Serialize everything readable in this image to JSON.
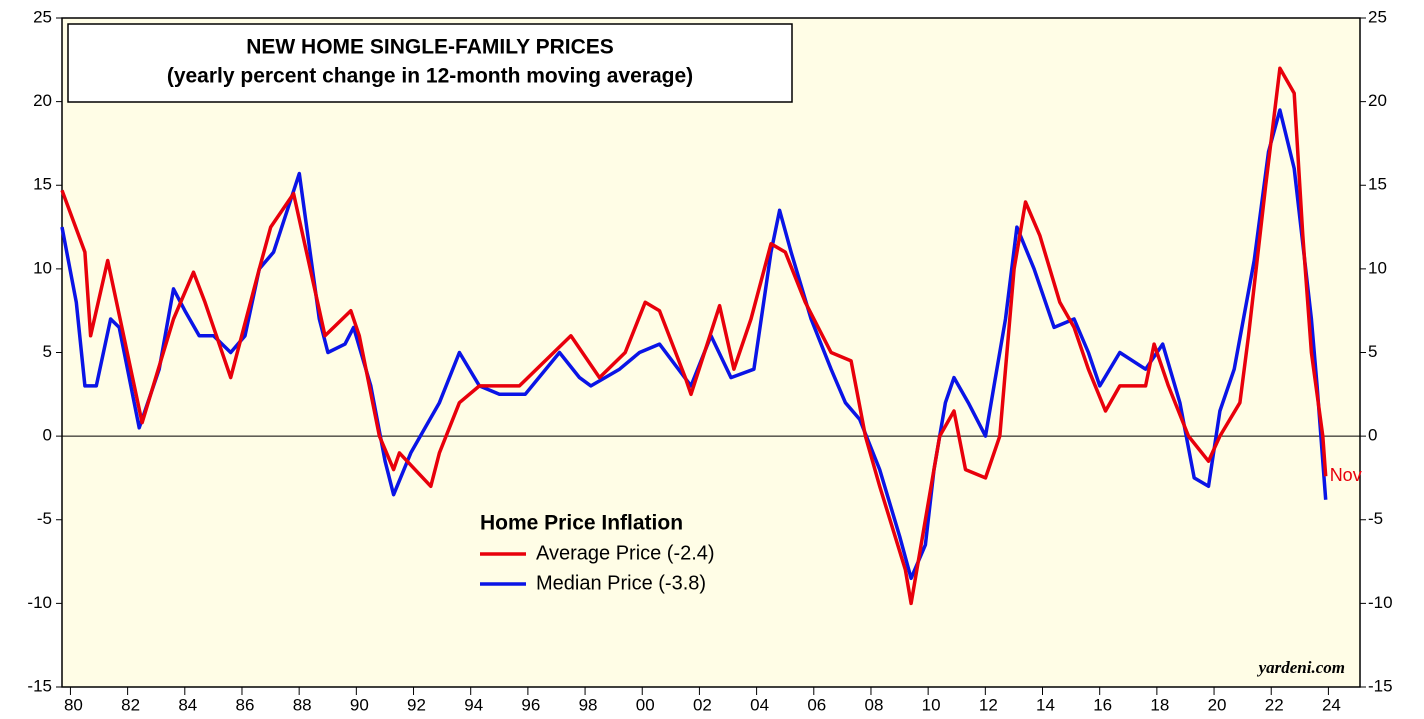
{
  "chart_data": {
    "type": "line",
    "title": [
      "NEW HOME SINGLE-FAMILY PRICES",
      "(yearly percent change in 12-month moving average)"
    ],
    "legend_title": "Home Price Inflation",
    "annotation": "Nov",
    "source": "yardeni.com",
    "xlim": [
      1979.6,
      2025
    ],
    "ylim": [
      -15,
      25
    ],
    "yticks": [
      -15,
      -10,
      -5,
      0,
      5,
      10,
      15,
      20,
      25
    ],
    "xticks": [
      {
        "value": 1980,
        "label": "80"
      },
      {
        "value": 1982,
        "label": "82"
      },
      {
        "value": 1984,
        "label": "84"
      },
      {
        "value": 1986,
        "label": "86"
      },
      {
        "value": 1988,
        "label": "88"
      },
      {
        "value": 1990,
        "label": "90"
      },
      {
        "value": 1992,
        "label": "92"
      },
      {
        "value": 1994,
        "label": "94"
      },
      {
        "value": 1996,
        "label": "96"
      },
      {
        "value": 1998,
        "label": "98"
      },
      {
        "value": 2000,
        "label": "00"
      },
      {
        "value": 2002,
        "label": "02"
      },
      {
        "value": 2004,
        "label": "04"
      },
      {
        "value": 2006,
        "label": "06"
      },
      {
        "value": 2008,
        "label": "08"
      },
      {
        "value": 2010,
        "label": "10"
      },
      {
        "value": 2012,
        "label": "12"
      },
      {
        "value": 2014,
        "label": "14"
      },
      {
        "value": 2016,
        "label": "16"
      },
      {
        "value": 2018,
        "label": "18"
      },
      {
        "value": 2020,
        "label": "20"
      },
      {
        "value": 2022,
        "label": "22"
      },
      {
        "value": 2024,
        "label": "24"
      }
    ],
    "series": [
      {
        "name": "Average Price (-2.4)",
        "color": "#e8000b",
        "x": [
          1979.6,
          1980.4,
          1980.6,
          1981.2,
          1982.4,
          1983.5,
          1984.2,
          1984.6,
          1985.5,
          1986.5,
          1986.9,
          1987.7,
          1988.8,
          1989.7,
          1990.0,
          1990.7,
          1991.2,
          1991.4,
          1992.5,
          1992.8,
          1993.5,
          1994.2,
          1995.6,
          1997.4,
          1998.4,
          1999.3,
          2000.0,
          2000.5,
          2001.4,
          2001.6,
          2002.6,
          2003.1,
          2003.7,
          2004.4,
          2004.9,
          2005.6,
          2006.5,
          2007.2,
          2007.7,
          2008.2,
          2009.1,
          2009.3,
          2010.0,
          2010.3,
          2010.8,
          2011.2,
          2011.9,
          2012.4,
          2012.6,
          2012.9,
          2013.3,
          2013.8,
          2014.5,
          2015.0,
          2015.5,
          2016.1,
          2016.6,
          2017.5,
          2017.8,
          2018.3,
          2019.0,
          2019.7,
          2020.1,
          2020.8,
          2021.1,
          2021.7,
          2022.2,
          2022.7,
          2023.0,
          2023.3,
          2023.7,
          2023.8
        ],
        "values": [
          14.7,
          11,
          6,
          10.5,
          0.8,
          7,
          9.8,
          8,
          3.5,
          10,
          12.5,
          14.5,
          6,
          7.5,
          6,
          0,
          -2,
          -1,
          -3,
          -1,
          2,
          3,
          3,
          6,
          3.5,
          5,
          8,
          7.5,
          3.5,
          2.5,
          7.8,
          4,
          7,
          11.5,
          11,
          8,
          5,
          4.5,
          0,
          -3,
          -8,
          -10,
          -3,
          0,
          1.5,
          -2,
          -2.5,
          0,
          4,
          10,
          14,
          12,
          8,
          6.5,
          4,
          1.5,
          3,
          3,
          5.5,
          3,
          0,
          -1.5,
          0,
          2,
          6,
          15,
          22,
          20.5,
          12,
          5,
          0,
          -2.4
        ]
      },
      {
        "name": "Median Price (-3.8)",
        "color": "#0a14e6",
        "x": [
          1979.6,
          1980.1,
          1980.4,
          1980.8,
          1981.3,
          1981.6,
          1982.3,
          1983.0,
          1983.5,
          1983.9,
          1984.4,
          1984.9,
          1985.5,
          1986.0,
          1986.5,
          1987.0,
          1987.9,
          1988.6,
          1988.9,
          1989.5,
          1989.8,
          1990.4,
          1990.9,
          1991.2,
          1991.8,
          1992.3,
          1992.8,
          1993.5,
          1994.2,
          1994.9,
          1995.8,
          1997.0,
          1997.7,
          1998.1,
          1999.1,
          1999.8,
          2000.5,
          2001.6,
          2002.3,
          2003.0,
          2003.8,
          2004.4,
          2004.7,
          2005.1,
          2005.8,
          2006.5,
          2007.0,
          2007.5,
          2008.2,
          2008.9,
          2009.3,
          2009.8,
          2010.1,
          2010.5,
          2010.8,
          2011.3,
          2011.9,
          2012.2,
          2012.6,
          2013.0,
          2013.6,
          2014.3,
          2015.0,
          2015.5,
          2015.9,
          2016.6,
          2017.5,
          2018.1,
          2018.7,
          2019.2,
          2019.7,
          2020.1,
          2020.6,
          2021.3,
          2021.8,
          2022.2,
          2022.7,
          2023.3,
          2023.5,
          2023.8
        ],
        "values": [
          12.5,
          8,
          3,
          3,
          7,
          6.5,
          0.5,
          4,
          8.8,
          7.5,
          6,
          6,
          5,
          6,
          10,
          11,
          15.7,
          7,
          5,
          5.5,
          6.5,
          3,
          -1.5,
          -3.5,
          -1,
          0.5,
          2,
          5,
          3,
          2.5,
          2.5,
          5,
          3.5,
          3,
          4,
          5,
          5.5,
          3,
          6,
          3.5,
          4,
          11,
          13.5,
          11,
          7,
          4,
          2,
          1,
          -2,
          -6,
          -8.5,
          -6.5,
          -2,
          2,
          3.5,
          2,
          0,
          3,
          7,
          12.5,
          10,
          6.5,
          7,
          5,
          3,
          5,
          4,
          5.5,
          2,
          -2.5,
          -3,
          1.5,
          4,
          10.5,
          17,
          19.5,
          16,
          7,
          3,
          -3.8
        ]
      }
    ]
  }
}
